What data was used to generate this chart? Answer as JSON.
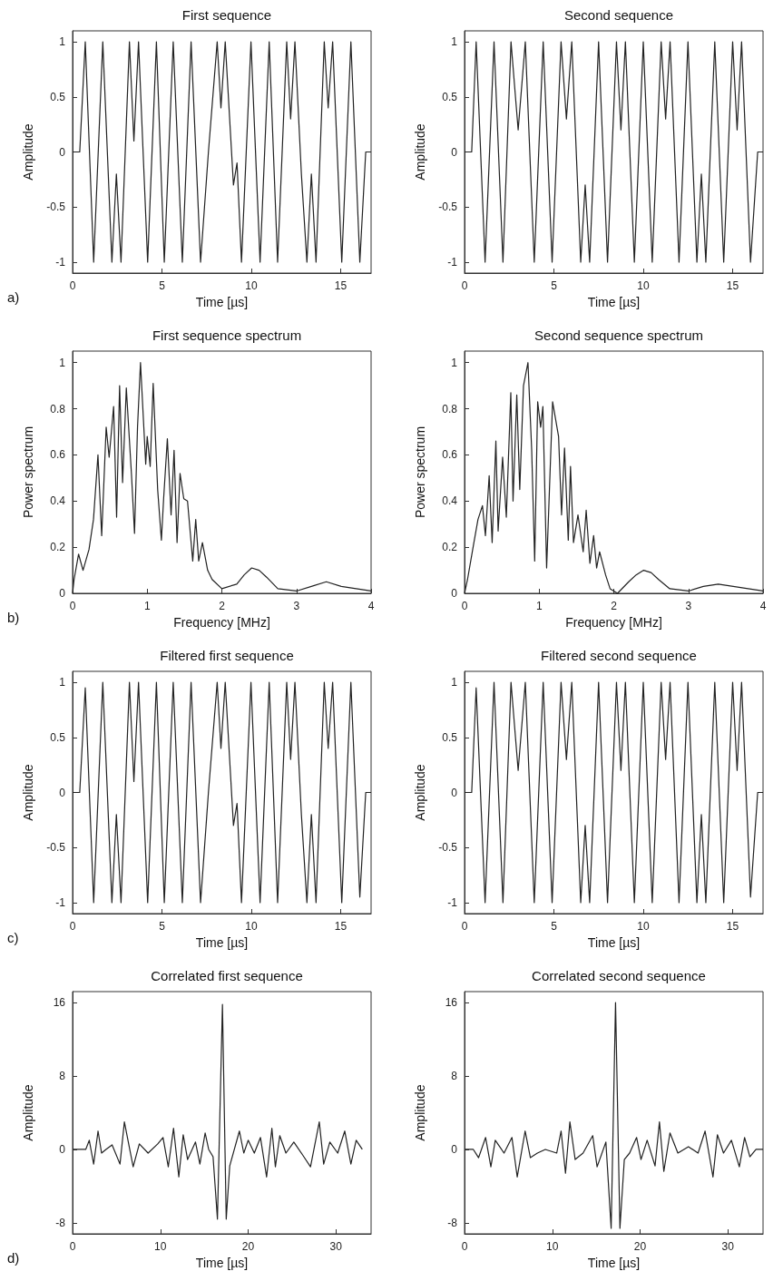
{
  "chart_data": [
    {
      "type": "line",
      "title": "First sequence",
      "xlabel": "Time [µs]",
      "ylabel": "Amplitude",
      "annotations": [
        "a)"
      ],
      "xlim": [
        0,
        16.7
      ],
      "xticks": [
        0,
        5,
        10,
        15
      ],
      "ylim": [
        -1.1,
        1.1
      ],
      "yticks": [
        -1,
        -0.5,
        0,
        0.5,
        1
      ],
      "grid": false,
      "marker": "none",
      "line_style": "solid",
      "series": [
        {
          "color": "#222222",
          "x": [
            0,
            0.4,
            0.71,
            1.18,
            1.69,
            2.2,
            2.45,
            2.71,
            3.18,
            3.43,
            3.69,
            4.2,
            4.69,
            5.13,
            5.63,
            6.14,
            6.63,
            7.16,
            7.6,
            8.09,
            8.3,
            8.54,
            9.0,
            9.2,
            9.45,
            9.98,
            10.49,
            11.0,
            11.47,
            11.98,
            12.2,
            12.44,
            12.8,
            13.11,
            13.36,
            13.62,
            14.08,
            14.3,
            14.55,
            15.06,
            15.57,
            16.07,
            16.4,
            16.7
          ],
          "values": [
            0,
            0,
            1,
            -1,
            1,
            -1,
            -0.2,
            -1,
            1,
            0.1,
            1,
            -1,
            1,
            -1,
            1,
            -1,
            1,
            -1,
            0,
            1,
            0.4,
            1,
            -0.3,
            -0.1,
            -1,
            1,
            -1,
            1,
            -1,
            1,
            0.3,
            1,
            -0.2,
            -1,
            -0.2,
            -1,
            1,
            0.4,
            1,
            -1,
            1,
            -1,
            0,
            0
          ]
        }
      ]
    },
    {
      "type": "line",
      "title": "Second sequence",
      "xlabel": "Time [µs]",
      "ylabel": "Amplitude",
      "xlim": [
        0,
        16.7
      ],
      "xticks": [
        0,
        5,
        10,
        15
      ],
      "ylim": [
        -1.1,
        1.1
      ],
      "yticks": [
        -1,
        -0.5,
        0,
        0.5,
        1
      ],
      "grid": false,
      "marker": "none",
      "line_style": "solid",
      "series": [
        {
          "color": "#222222",
          "x": [
            0,
            0.4,
            0.65,
            1.15,
            1.65,
            2.15,
            2.6,
            3.0,
            3.4,
            3.9,
            4.4,
            4.9,
            5.4,
            5.7,
            6.0,
            6.5,
            6.75,
            7.0,
            7.5,
            8.0,
            8.5,
            8.75,
            9.0,
            9.5,
            10.0,
            10.5,
            11.0,
            11.25,
            11.5,
            12.0,
            12.5,
            13.0,
            13.25,
            13.5,
            14.0,
            14.5,
            15.0,
            15.25,
            15.5,
            16.0,
            16.4,
            16.7
          ],
          "values": [
            0,
            0,
            1,
            -1,
            1,
            -1,
            1,
            0.2,
            1,
            -1,
            1,
            -1,
            1,
            0.3,
            1,
            -1,
            -0.3,
            -1,
            1,
            -1,
            1,
            0.2,
            1,
            -1,
            1,
            -1,
            1,
            0.3,
            1,
            -1,
            1,
            -1,
            -0.2,
            -1,
            1,
            -1,
            1,
            0.2,
            1,
            -1,
            0,
            0
          ]
        }
      ]
    },
    {
      "type": "line",
      "title": "First sequence spectrum",
      "xlabel": "Frequency [MHz]",
      "ylabel": "Power spectrum",
      "annotations": [
        "b)"
      ],
      "xlim": [
        0,
        4
      ],
      "xticks": [
        0,
        1,
        2,
        3,
        4
      ],
      "ylim": [
        0,
        1.05
      ],
      "yticks": [
        0,
        0.2,
        0.4,
        0.6,
        0.8,
        1
      ],
      "grid": false,
      "marker": "none",
      "line_style": "solid",
      "series": [
        {
          "color": "#222222",
          "x": [
            0,
            0.02,
            0.08,
            0.14,
            0.22,
            0.28,
            0.34,
            0.39,
            0.45,
            0.49,
            0.55,
            0.59,
            0.63,
            0.67,
            0.72,
            0.79,
            0.83,
            0.87,
            0.91,
            0.98,
            1.0,
            1.04,
            1.08,
            1.14,
            1.19,
            1.22,
            1.27,
            1.32,
            1.36,
            1.4,
            1.44,
            1.49,
            1.54,
            1.61,
            1.65,
            1.69,
            1.74,
            1.81,
            1.87,
            2.0,
            2.2,
            2.3,
            2.4,
            2.5,
            2.6,
            2.75,
            3.0,
            3.2,
            3.4,
            3.6,
            3.8,
            4.0
          ],
          "values": [
            0,
            0.06,
            0.17,
            0.1,
            0.19,
            0.32,
            0.6,
            0.25,
            0.72,
            0.59,
            0.81,
            0.33,
            0.9,
            0.48,
            0.89,
            0.51,
            0.26,
            0.72,
            1.0,
            0.56,
            0.68,
            0.55,
            0.91,
            0.45,
            0.23,
            0.41,
            0.67,
            0.34,
            0.62,
            0.22,
            0.52,
            0.41,
            0.4,
            0.14,
            0.32,
            0.14,
            0.22,
            0.1,
            0.06,
            0.02,
            0.04,
            0.08,
            0.11,
            0.1,
            0.07,
            0.02,
            0.01,
            0.03,
            0.05,
            0.03,
            0.02,
            0.01
          ]
        }
      ]
    },
    {
      "type": "line",
      "title": "Second sequence spectrum",
      "xlabel": "Frequency [MHz]",
      "ylabel": "Power spectrum",
      "xlim": [
        0,
        4
      ],
      "xticks": [
        0,
        1,
        2,
        3,
        4
      ],
      "ylim": [
        0,
        1.05
      ],
      "yticks": [
        0,
        0.2,
        0.4,
        0.6,
        0.8,
        1
      ],
      "grid": false,
      "marker": "none",
      "line_style": "solid",
      "series": [
        {
          "color": "#222222",
          "x": [
            0,
            0.04,
            0.12,
            0.18,
            0.24,
            0.28,
            0.33,
            0.37,
            0.42,
            0.45,
            0.51,
            0.56,
            0.62,
            0.65,
            0.7,
            0.74,
            0.79,
            0.85,
            0.9,
            0.94,
            0.98,
            1.02,
            1.05,
            1.1,
            1.18,
            1.26,
            1.3,
            1.34,
            1.39,
            1.42,
            1.46,
            1.52,
            1.59,
            1.63,
            1.68,
            1.73,
            1.77,
            1.81,
            1.89,
            1.95,
            2.05,
            2.2,
            2.3,
            2.4,
            2.5,
            2.6,
            2.75,
            3.0,
            3.2,
            3.4,
            3.6,
            3.8,
            4.0
          ],
          "values": [
            0,
            0.06,
            0.21,
            0.32,
            0.38,
            0.25,
            0.51,
            0.22,
            0.66,
            0.27,
            0.59,
            0.33,
            0.87,
            0.4,
            0.86,
            0.45,
            0.9,
            1.0,
            0.62,
            0.14,
            0.83,
            0.72,
            0.81,
            0.11,
            0.83,
            0.68,
            0.34,
            0.63,
            0.23,
            0.55,
            0.22,
            0.34,
            0.18,
            0.36,
            0.13,
            0.25,
            0.11,
            0.18,
            0.08,
            0.02,
            0,
            0.05,
            0.08,
            0.1,
            0.09,
            0.06,
            0.02,
            0.01,
            0.03,
            0.04,
            0.03,
            0.02,
            0.01
          ]
        }
      ]
    },
    {
      "type": "line",
      "title": "Filtered first sequence",
      "xlabel": "Time [µs]",
      "ylabel": "Amplitude",
      "annotations": [
        "c)"
      ],
      "xlim": [
        0,
        16.7
      ],
      "xticks": [
        0,
        5,
        10,
        15
      ],
      "ylim": [
        -1.1,
        1.1
      ],
      "yticks": [
        -1,
        -0.5,
        0,
        0.5,
        1
      ],
      "grid": false,
      "marker": "none",
      "line_style": "solid",
      "series": [
        {
          "color": "#222222",
          "x": [
            0,
            0.4,
            0.71,
            1.18,
            1.69,
            2.2,
            2.45,
            2.71,
            3.18,
            3.43,
            3.69,
            4.2,
            4.69,
            5.13,
            5.63,
            6.14,
            6.63,
            7.16,
            7.6,
            8.09,
            8.3,
            8.54,
            9.0,
            9.2,
            9.45,
            9.98,
            10.49,
            11.0,
            11.47,
            11.98,
            12.2,
            12.44,
            12.8,
            13.11,
            13.36,
            13.62,
            14.08,
            14.3,
            14.55,
            15.06,
            15.57,
            16.07,
            16.4,
            16.7
          ],
          "values": [
            0,
            0,
            0.95,
            -1,
            1,
            -1,
            -0.2,
            -1,
            1,
            0.1,
            1,
            -1,
            1,
            -1,
            1,
            -1,
            1,
            -1,
            0,
            1,
            0.4,
            1,
            -0.3,
            -0.1,
            -1,
            1,
            -1,
            1,
            -1,
            1,
            0.3,
            1,
            -0.2,
            -1,
            -0.2,
            -1,
            1,
            0.4,
            1,
            -1,
            1,
            -0.95,
            0,
            0
          ]
        }
      ]
    },
    {
      "type": "line",
      "title": "Filtered second sequence",
      "xlabel": "Time [µs]",
      "ylabel": "Amplitude",
      "xlim": [
        0,
        16.7
      ],
      "xticks": [
        0,
        5,
        10,
        15
      ],
      "ylim": [
        -1.1,
        1.1
      ],
      "yticks": [
        -1,
        -0.5,
        0,
        0.5,
        1
      ],
      "grid": false,
      "marker": "none",
      "line_style": "solid",
      "series": [
        {
          "color": "#222222",
          "x": [
            0,
            0.4,
            0.65,
            1.15,
            1.65,
            2.15,
            2.6,
            3.0,
            3.4,
            3.9,
            4.4,
            4.9,
            5.4,
            5.7,
            6.0,
            6.5,
            6.75,
            7.0,
            7.5,
            8.0,
            8.5,
            8.75,
            9.0,
            9.5,
            10.0,
            10.5,
            11.0,
            11.25,
            11.5,
            12.0,
            12.5,
            13.0,
            13.25,
            13.5,
            14.0,
            14.5,
            15.0,
            15.25,
            15.5,
            16.0,
            16.4,
            16.7
          ],
          "values": [
            0,
            0,
            0.95,
            -1,
            1,
            -1,
            1,
            0.2,
            1,
            -1,
            1,
            -1,
            1,
            0.3,
            1,
            -1,
            -0.3,
            -1,
            1,
            -1,
            1,
            0.2,
            1,
            -1,
            1,
            -1,
            1,
            0.3,
            1,
            -1,
            1,
            -1,
            -0.2,
            -1,
            1,
            -1,
            1,
            0.2,
            1,
            -0.95,
            0,
            0
          ]
        }
      ]
    },
    {
      "type": "line",
      "title": "Correlated first sequence",
      "xlabel": "Time [µs]",
      "ylabel": "Amplitude",
      "annotations": [
        "d)"
      ],
      "xlim": [
        0,
        34
      ],
      "xticks": [
        0,
        10,
        20,
        30
      ],
      "ylim": [
        -9.2,
        17.2
      ],
      "yticks": [
        -8,
        0,
        8,
        16
      ],
      "grid": false,
      "marker": "none",
      "line_style": "solid",
      "series": [
        {
          "color": "#222222",
          "x": [
            0,
            1.5,
            1.9,
            2.4,
            2.9,
            3.3,
            3.8,
            4.5,
            5.4,
            5.9,
            6.9,
            7.6,
            8.6,
            9.7,
            10.3,
            10.9,
            11.5,
            12.1,
            12.6,
            13.1,
            14.0,
            14.5,
            15.1,
            15.5,
            16.0,
            16.5,
            17.07,
            17.5,
            17.9,
            19.0,
            19.5,
            20.0,
            20.7,
            21.4,
            22.1,
            22.7,
            23.1,
            23.6,
            24.3,
            25.2,
            26.2,
            27.1,
            28.1,
            28.6,
            29.3,
            30.2,
            31.0,
            31.7,
            32.3,
            33.0
          ],
          "values": [
            0,
            0,
            1.0,
            -1.6,
            2.0,
            -0.4,
            0,
            0.5,
            -1.6,
            3.0,
            -1.9,
            0.6,
            -0.4,
            0.6,
            1.3,
            -1.9,
            2.3,
            -3.0,
            1.6,
            -1.1,
            0.8,
            -1.6,
            1.8,
            0,
            -0.8,
            -7.6,
            15.8,
            -7.6,
            -1.8,
            2.0,
            -0.4,
            1.0,
            -0.4,
            1.3,
            -3.0,
            2.3,
            -1.9,
            1.5,
            -0.4,
            0.8,
            -0.6,
            -1.9,
            3.0,
            -1.6,
            0.8,
            -0.4,
            2.0,
            -1.6,
            1.0,
            0
          ]
        }
      ]
    },
    {
      "type": "line",
      "title": "Correlated second sequence",
      "xlabel": "Time [µs]",
      "ylabel": "Amplitude",
      "xlim": [
        0,
        34
      ],
      "xticks": [
        0,
        10,
        20,
        30
      ],
      "ylim": [
        -9.2,
        17.2
      ],
      "yticks": [
        -8,
        0,
        8,
        16
      ],
      "grid": false,
      "marker": "none",
      "line_style": "solid",
      "series": [
        {
          "color": "#222222",
          "x": [
            0,
            1.0,
            1.6,
            2.4,
            3.0,
            3.5,
            4.0,
            4.5,
            5.4,
            6.0,
            6.9,
            7.5,
            8.3,
            9.2,
            10.5,
            11.0,
            11.5,
            12.0,
            12.6,
            13.5,
            14.6,
            15.1,
            16.1,
            16.7,
            17.2,
            17.7,
            18.2,
            18.8,
            19.6,
            20.1,
            20.8,
            21.7,
            22.2,
            22.7,
            23.4,
            24.3,
            25.5,
            26.6,
            27.4,
            28.3,
            28.8,
            29.5,
            30.4,
            31.3,
            31.9,
            32.5,
            33.2,
            34
          ],
          "values": [
            0,
            0,
            -0.9,
            1.3,
            -1.9,
            1.0,
            0.3,
            -0.4,
            1.3,
            -3.0,
            2.0,
            -0.9,
            -0.4,
            0,
            -0.4,
            2.0,
            -2.6,
            3.0,
            -1.1,
            -0.4,
            1.5,
            -1.9,
            0.8,
            -8.6,
            16.0,
            -8.6,
            -1.1,
            -0.4,
            1.3,
            -1.1,
            1.0,
            -1.8,
            3.0,
            -2.4,
            1.8,
            -0.4,
            0.3,
            -0.4,
            2.0,
            -3.0,
            1.6,
            -0.4,
            1.0,
            -1.9,
            1.3,
            -0.8,
            0,
            0
          ]
        }
      ]
    }
  ]
}
